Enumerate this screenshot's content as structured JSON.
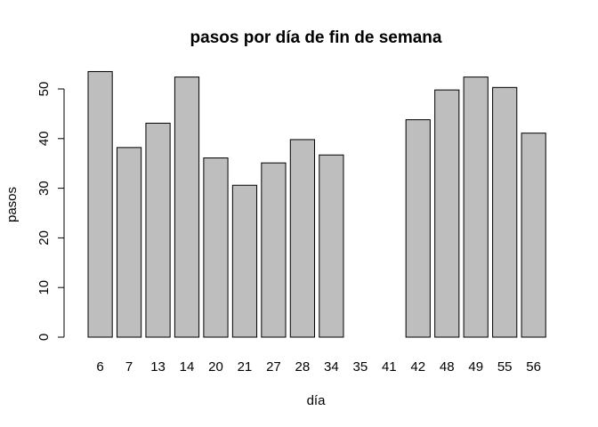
{
  "chart_data": {
    "type": "bar",
    "title": "pasos por día de fin de semana",
    "xlabel": "día",
    "ylabel": "pasos",
    "categories": [
      "6",
      "7",
      "13",
      "14",
      "20",
      "21",
      "27",
      "28",
      "34",
      "35",
      "41",
      "42",
      "48",
      "49",
      "55",
      "56"
    ],
    "values": [
      53.5,
      38.2,
      43.1,
      52.4,
      36.1,
      30.6,
      35.1,
      39.8,
      36.7,
      null,
      null,
      43.8,
      49.8,
      52.4,
      50.3,
      41.1
    ],
    "ylim": [
      0,
      55
    ],
    "yticks": [
      0,
      10,
      20,
      30,
      40,
      50
    ],
    "grid": false,
    "legend": "none",
    "bar_color": "#bebebe",
    "bar_edge_color": "#000000"
  }
}
